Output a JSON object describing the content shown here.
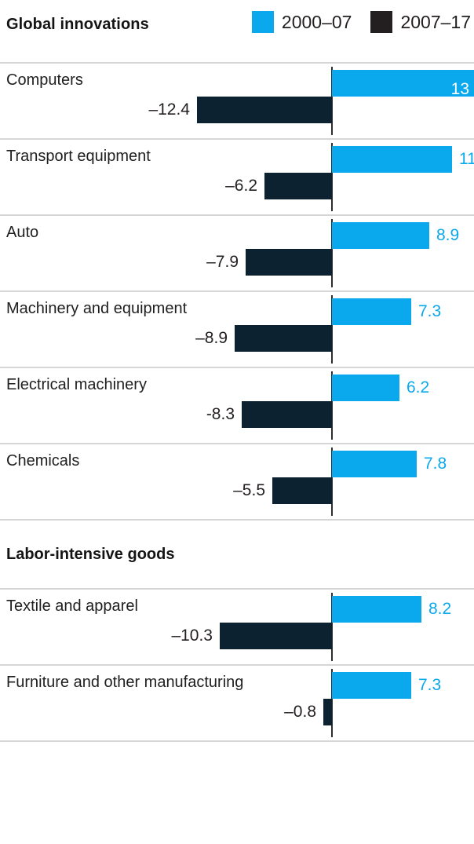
{
  "header": {
    "title": "Global innovations",
    "legend": [
      {
        "label": "2000–07",
        "color": "#0aa8ec"
      },
      {
        "label": "2007–17",
        "color": "#231f20"
      }
    ]
  },
  "chart_data": {
    "type": "bar",
    "orientation": "horizontal",
    "diverging": true,
    "series_names": [
      "2000–07",
      "2007–17"
    ],
    "colors": {
      "positive_bar": "#0aa8ec",
      "negative_bar": "#0d2231",
      "separator": "#d6d6d6"
    },
    "xlim": [
      -13.1,
      13.1
    ],
    "grid": false,
    "legend_position": "top-right",
    "sections": [
      {
        "title": "Global innovations",
        "rows": [
          {
            "category": "Computers",
            "pos": 13,
            "neg": -12.4,
            "pos_label": "13",
            "neg_label": "–12.4",
            "pos_label_inside": true
          },
          {
            "category": "Transport equipment",
            "pos": 11,
            "neg": -6.2,
            "pos_label": "11",
            "neg_label": "–6.2",
            "pos_label_inside": false
          },
          {
            "category": "Auto",
            "pos": 8.9,
            "neg": -7.9,
            "pos_label": "8.9",
            "neg_label": "–7.9",
            "pos_label_inside": false
          },
          {
            "category": "Machinery and equipment",
            "pos": 7.3,
            "neg": -8.9,
            "pos_label": "7.3",
            "neg_label": "–8.9",
            "pos_label_inside": false
          },
          {
            "category": "Electrical machinery",
            "pos": 6.2,
            "neg": -8.3,
            "pos_label": "6.2",
            "neg_label": "-8.3",
            "pos_label_inside": false
          },
          {
            "category": "Chemicals",
            "pos": 7.8,
            "neg": -5.5,
            "pos_label": "7.8",
            "neg_label": "–5.5",
            "pos_label_inside": false
          }
        ]
      },
      {
        "title": "Labor-intensive goods",
        "rows": [
          {
            "category": "Textile and apparel",
            "pos": 8.2,
            "neg": -10.3,
            "pos_label": "8.2",
            "neg_label": "–10.3",
            "pos_label_inside": false
          },
          {
            "category": "Furniture and other manufacturing",
            "pos": 7.3,
            "neg": -0.8,
            "pos_label": "7.3",
            "neg_label": "–0.8",
            "pos_label_inside": false
          }
        ]
      }
    ]
  }
}
